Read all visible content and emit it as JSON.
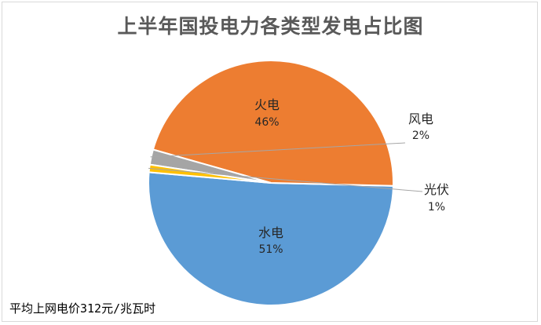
{
  "chart_data": {
    "type": "pie",
    "title": "上半年国投电力各类型发电占比图",
    "slices": [
      {
        "label": "水电",
        "percent_label": "51%",
        "value": 51,
        "color": "#5b9bd5"
      },
      {
        "label": "火电",
        "percent_label": "46%",
        "value": 46,
        "color": "#ed7d31"
      },
      {
        "label": "风电",
        "percent_label": "2%",
        "value": 2,
        "color": "#a5a5a5"
      },
      {
        "label": "光伏",
        "percent_label": "1%",
        "value": 1,
        "color": "#ffc000"
      }
    ],
    "legend": "none",
    "annotation": "平均上网电价312元/兆瓦时"
  }
}
